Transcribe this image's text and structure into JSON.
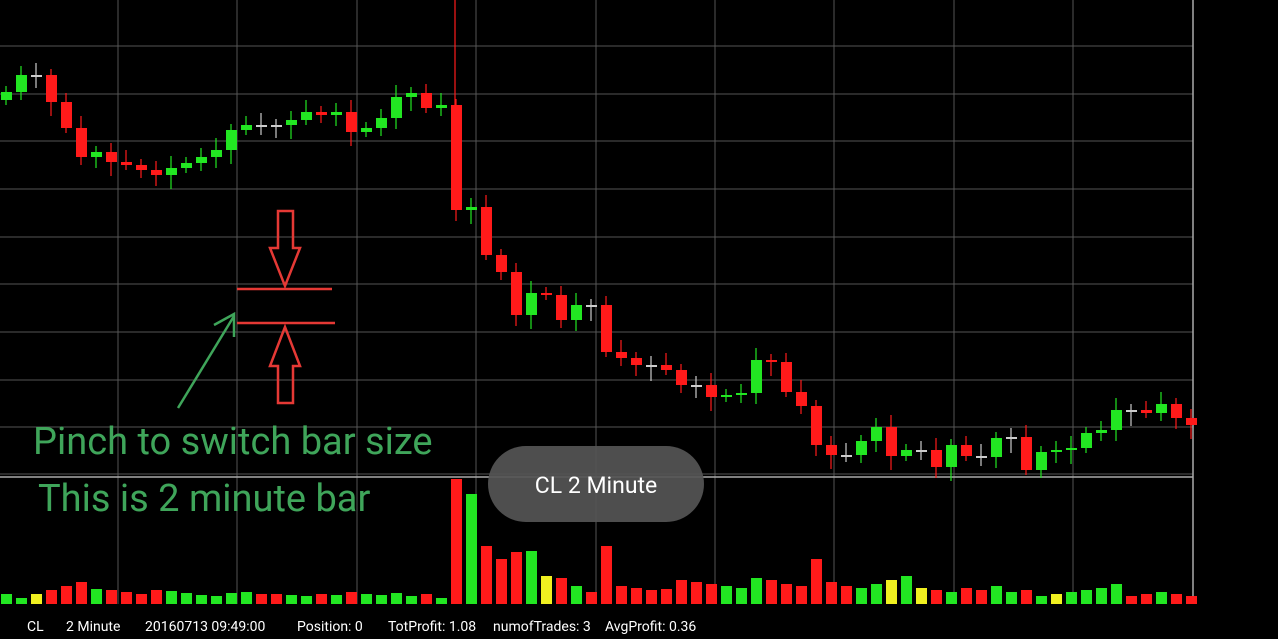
{
  "hint": {
    "line1": "Pinch to switch bar size",
    "line2": "This is 2 minute bar"
  },
  "toast": "CL 2 Minute",
  "status": {
    "symbol": "CL",
    "interval": "2 Minute",
    "time": "20160713 09:49:00",
    "position": "Position: 0",
    "tot_profit": "TotProfit: 1.08",
    "num_trades": "numofTrades: 3",
    "avg_profit": "AvgProfit: 0.36"
  }
}
